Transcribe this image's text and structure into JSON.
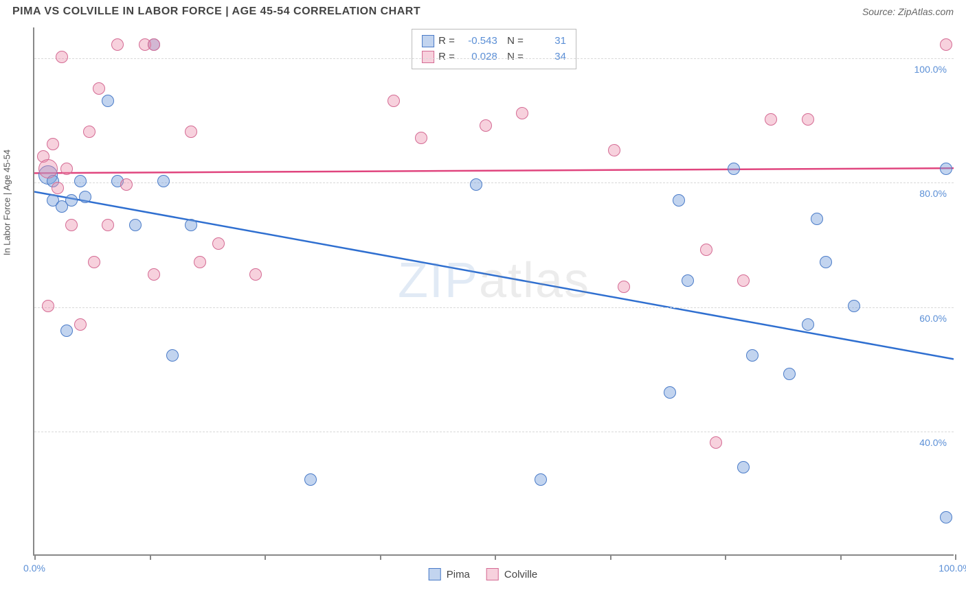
{
  "title": "PIMA VS COLVILLE IN LABOR FORCE | AGE 45-54 CORRELATION CHART",
  "source": "Source: ZipAtlas.com",
  "ylabel": "In Labor Force | Age 45-54",
  "watermark": "ZIPatlas",
  "chart": {
    "type": "scatter",
    "xlim": [
      0,
      100
    ],
    "ylim": [
      20,
      105
    ],
    "x_ticks": [
      0,
      12.5,
      25,
      37.5,
      50,
      62.5,
      75,
      87.5,
      100
    ],
    "x_tick_labels": {
      "0": "0.0%",
      "100": "100.0%"
    },
    "y_ticks": [
      40,
      60,
      80,
      100
    ],
    "y_tick_labels": {
      "40": "40.0%",
      "60": "60.0%",
      "80": "80.0%",
      "100": "100.0%"
    },
    "background_color": "#ffffff",
    "grid_color": "#d8d8d8",
    "axis_color": "#888888",
    "tick_label_color": "#5b8fd6",
    "marker_radius": 9,
    "marker_radius_large": 14,
    "series": [
      {
        "name": "Pima",
        "fill": "rgba(120,160,220,0.45)",
        "stroke": "#4a7bc8",
        "trend": {
          "color": "#2f6fd0",
          "width": 2.5,
          "y_at_x0": 78.5,
          "y_at_x100": 51.5
        },
        "stats": {
          "R": "-0.543",
          "N": "31"
        },
        "points": [
          {
            "x": 1.5,
            "y": 81,
            "r": 14
          },
          {
            "x": 2,
            "y": 80
          },
          {
            "x": 2,
            "y": 77
          },
          {
            "x": 3,
            "y": 76
          },
          {
            "x": 3.5,
            "y": 56
          },
          {
            "x": 4,
            "y": 77
          },
          {
            "x": 5,
            "y": 80
          },
          {
            "x": 5.5,
            "y": 77.5
          },
          {
            "x": 8,
            "y": 93
          },
          {
            "x": 9,
            "y": 80
          },
          {
            "x": 11,
            "y": 73
          },
          {
            "x": 13,
            "y": 102
          },
          {
            "x": 14,
            "y": 80
          },
          {
            "x": 15,
            "y": 52
          },
          {
            "x": 17,
            "y": 73
          },
          {
            "x": 30,
            "y": 32
          },
          {
            "x": 48,
            "y": 79.5
          },
          {
            "x": 55,
            "y": 32
          },
          {
            "x": 69,
            "y": 46
          },
          {
            "x": 70,
            "y": 77
          },
          {
            "x": 71,
            "y": 64
          },
          {
            "x": 76,
            "y": 82
          },
          {
            "x": 77,
            "y": 34
          },
          {
            "x": 78,
            "y": 52
          },
          {
            "x": 82,
            "y": 49
          },
          {
            "x": 84,
            "y": 57
          },
          {
            "x": 85,
            "y": 74
          },
          {
            "x": 86,
            "y": 67
          },
          {
            "x": 89,
            "y": 60
          },
          {
            "x": 99,
            "y": 26
          },
          {
            "x": 99,
            "y": 82
          }
        ]
      },
      {
        "name": "Colville",
        "fill": "rgba(235,140,170,0.40)",
        "stroke": "#d46a93",
        "trend": {
          "color": "#e0457e",
          "width": 2.5,
          "y_at_x0": 81.5,
          "y_at_x100": 82.3
        },
        "stats": {
          "R": "0.028",
          "N": "34"
        },
        "points": [
          {
            "x": 1,
            "y": 84
          },
          {
            "x": 1.5,
            "y": 82,
            "r": 14
          },
          {
            "x": 1.5,
            "y": 60
          },
          {
            "x": 2,
            "y": 86
          },
          {
            "x": 2.5,
            "y": 79
          },
          {
            "x": 3,
            "y": 100
          },
          {
            "x": 3.5,
            "y": 82
          },
          {
            "x": 4,
            "y": 73
          },
          {
            "x": 5,
            "y": 57
          },
          {
            "x": 6,
            "y": 88
          },
          {
            "x": 6.5,
            "y": 67
          },
          {
            "x": 7,
            "y": 95
          },
          {
            "x": 8,
            "y": 73
          },
          {
            "x": 9,
            "y": 102
          },
          {
            "x": 10,
            "y": 79.5
          },
          {
            "x": 12,
            "y": 102
          },
          {
            "x": 13,
            "y": 102
          },
          {
            "x": 13,
            "y": 65
          },
          {
            "x": 17,
            "y": 88
          },
          {
            "x": 18,
            "y": 67
          },
          {
            "x": 20,
            "y": 70
          },
          {
            "x": 24,
            "y": 65
          },
          {
            "x": 39,
            "y": 93
          },
          {
            "x": 42,
            "y": 87
          },
          {
            "x": 49,
            "y": 89
          },
          {
            "x": 53,
            "y": 91
          },
          {
            "x": 63,
            "y": 85
          },
          {
            "x": 64,
            "y": 63
          },
          {
            "x": 73,
            "y": 69
          },
          {
            "x": 74,
            "y": 38
          },
          {
            "x": 77,
            "y": 64
          },
          {
            "x": 80,
            "y": 90
          },
          {
            "x": 84,
            "y": 90
          },
          {
            "x": 99,
            "y": 102
          }
        ]
      }
    ]
  },
  "legend_bottom": [
    {
      "label": "Pima",
      "fill": "rgba(120,160,220,0.45)",
      "stroke": "#4a7bc8"
    },
    {
      "label": "Colville",
      "fill": "rgba(235,140,170,0.40)",
      "stroke": "#d46a93"
    }
  ]
}
